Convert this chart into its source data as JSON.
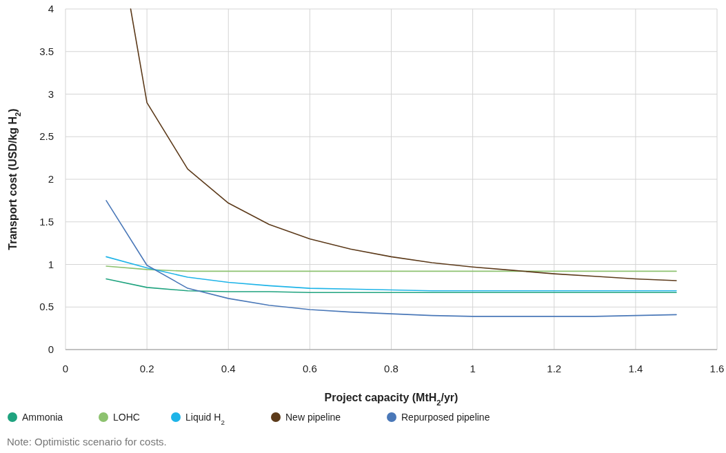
{
  "chart_data": {
    "type": "line",
    "xlabel": "Project capacity (MtH$_{2}$/yr)",
    "ylabel": "Transport cost (USD/kg H$_{2}$)",
    "x": [
      0.1,
      0.2,
      0.3,
      0.4,
      0.5,
      0.6,
      0.7,
      0.8,
      0.9,
      1.0,
      1.1,
      1.2,
      1.3,
      1.4,
      1.5
    ],
    "series": [
      {
        "name": "Ammonia",
        "color": "#1fa37f",
        "values": [
          0.83,
          0.73,
          0.69,
          0.68,
          0.68,
          0.67,
          0.67,
          0.67,
          0.67,
          0.67,
          0.67,
          0.67,
          0.67,
          0.67,
          0.67
        ]
      },
      {
        "name": "LOHC",
        "color": "#8dc26f",
        "values": [
          0.98,
          0.94,
          0.92,
          0.92,
          0.92,
          0.92,
          0.92,
          0.92,
          0.92,
          0.92,
          0.92,
          0.92,
          0.92,
          0.92,
          0.92
        ]
      },
      {
        "name": "Liquid H$_{2}$",
        "color": "#1eb4e8",
        "values": [
          1.09,
          0.96,
          0.85,
          0.79,
          0.75,
          0.72,
          0.71,
          0.7,
          0.69,
          0.69,
          0.69,
          0.69,
          0.69,
          0.69,
          0.69
        ]
      },
      {
        "name": "New pipeline",
        "color": "#5c3a1a",
        "x": [
          0.16,
          0.2,
          0.3,
          0.4,
          0.5,
          0.6,
          0.7,
          0.8,
          0.9,
          1.0,
          1.1,
          1.2,
          1.3,
          1.4,
          1.5
        ],
        "values": [
          4,
          2.9,
          2.12,
          1.72,
          1.47,
          1.3,
          1.18,
          1.09,
          1.02,
          0.97,
          0.93,
          0.89,
          0.86,
          0.83,
          0.81
        ]
      },
      {
        "name": "Repurposed pipeline",
        "color": "#4a78b8",
        "values": [
          1.75,
          0.99,
          0.72,
          0.6,
          0.52,
          0.47,
          0.44,
          0.42,
          0.4,
          0.39,
          0.39,
          0.39,
          0.39,
          0.4,
          0.41
        ]
      }
    ],
    "xlim": [
      0,
      1.6
    ],
    "xticks": [
      0,
      0.2,
      0.4,
      0.6,
      0.8,
      1,
      1.2,
      1.4,
      1.6
    ],
    "ylim": [
      0,
      4
    ],
    "yticks": [
      0,
      0.5,
      1,
      1.5,
      2,
      2.5,
      3,
      3.5,
      4
    ],
    "grid": true,
    "legend": "bottom",
    "marker": "none",
    "line_style": "solid",
    "annotations": [
      "Note: Optimistic scenario for costs."
    ]
  }
}
